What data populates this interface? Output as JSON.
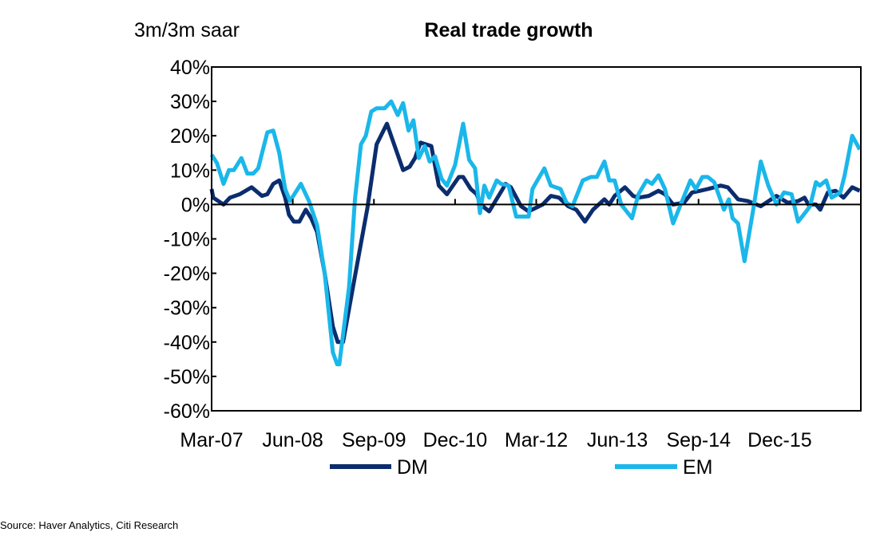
{
  "chart_data": {
    "type": "line",
    "title": "Real trade growth",
    "ylabel": "3m/3m saar",
    "xlabel": "",
    "x_unit": "months since Mar-07",
    "xlim": [
      0,
      120
    ],
    "ylim": [
      -60,
      40
    ],
    "y_ticks": [
      40,
      30,
      20,
      10,
      0,
      -10,
      -20,
      -30,
      -40,
      -50,
      -60
    ],
    "y_tick_labels": [
      "40%",
      "30%",
      "20%",
      "10%",
      "0%",
      "-10%",
      "-20%",
      "-30%",
      "-40%",
      "-50%",
      "-60%"
    ],
    "x_ticks": [
      0,
      15,
      30,
      45,
      60,
      75,
      90,
      105
    ],
    "x_tick_labels": [
      "Mar-07",
      "Jun-08",
      "Sep-09",
      "Dec-10",
      "Mar-12",
      "Jun-13",
      "Sep-14",
      "Dec-15"
    ],
    "grid": false,
    "legend_position": "bottom",
    "series": [
      {
        "name": "DM",
        "color": "#0b2d6e",
        "points": [
          [
            0,
            4.5
          ],
          [
            0.3,
            2
          ],
          [
            2.2,
            0
          ],
          [
            3.4,
            2
          ],
          [
            5.2,
            3
          ],
          [
            7.4,
            5
          ],
          [
            9.3,
            2.5
          ],
          [
            10.3,
            3
          ],
          [
            11.4,
            6
          ],
          [
            12.5,
            7
          ],
          [
            13.6,
            2
          ],
          [
            14.3,
            -3
          ],
          [
            15.2,
            -5
          ],
          [
            16.2,
            -5
          ],
          [
            17.4,
            -1.5
          ],
          [
            18.4,
            -4
          ],
          [
            19.5,
            -8
          ],
          [
            20.9,
            -20
          ],
          [
            22.4,
            -35.5
          ],
          [
            23.3,
            -40
          ],
          [
            24.3,
            -40
          ],
          [
            26.3,
            -22.5
          ],
          [
            28.8,
            -1
          ],
          [
            30.5,
            17.5
          ],
          [
            32.4,
            23.5
          ],
          [
            35.4,
            10
          ],
          [
            36.6,
            11
          ],
          [
            37.6,
            13.5
          ],
          [
            38.6,
            18
          ],
          [
            40.6,
            17
          ],
          [
            42,
            5.5
          ],
          [
            43.5,
            3
          ],
          [
            45.7,
            8
          ],
          [
            46.5,
            8
          ],
          [
            47.9,
            4.5
          ],
          [
            49,
            3
          ],
          [
            49.7,
            0
          ],
          [
            51.3,
            -2
          ],
          [
            53.8,
            4.5
          ],
          [
            54.3,
            6
          ],
          [
            55.3,
            5
          ],
          [
            57.2,
            -0.5
          ],
          [
            58.6,
            -2
          ],
          [
            61.2,
            0
          ],
          [
            62.7,
            2.5
          ],
          [
            64.2,
            2
          ],
          [
            65.9,
            -0.5
          ],
          [
            67.4,
            -1.5
          ],
          [
            69,
            -5
          ],
          [
            70.5,
            -1.5
          ],
          [
            72.6,
            1.5
          ],
          [
            73.5,
            0
          ],
          [
            74.5,
            2.5
          ],
          [
            76.4,
            5
          ],
          [
            77.9,
            2.5
          ],
          [
            78.9,
            2
          ],
          [
            80.8,
            2.5
          ],
          [
            82.6,
            4
          ],
          [
            83.8,
            3
          ],
          [
            85.3,
            0
          ],
          [
            87.3,
            0.5
          ],
          [
            88.8,
            3.5
          ],
          [
            90.3,
            4
          ],
          [
            91.7,
            4.5
          ],
          [
            94.1,
            5.5
          ],
          [
            95.4,
            5
          ],
          [
            97.3,
            1.5
          ],
          [
            99.1,
            1
          ],
          [
            101.5,
            -0.5
          ],
          [
            104.4,
            2.5
          ],
          [
            106.5,
            0.5
          ],
          [
            108.4,
            1
          ],
          [
            109.6,
            2
          ],
          [
            110.3,
            0
          ],
          [
            111.7,
            0
          ],
          [
            112.5,
            -1.5
          ],
          [
            113.9,
            3.5
          ],
          [
            115.3,
            4
          ],
          [
            116.8,
            2
          ],
          [
            118.4,
            5
          ],
          [
            119.8,
            4
          ]
        ]
      },
      {
        "name": "EM",
        "color": "#1ab7ea",
        "points": [
          [
            0,
            14.5
          ],
          [
            1,
            12
          ],
          [
            2.2,
            6
          ],
          [
            3.2,
            10
          ],
          [
            4.1,
            10
          ],
          [
            5.5,
            13.5
          ],
          [
            6.6,
            9
          ],
          [
            7.7,
            9
          ],
          [
            8.6,
            10.5
          ],
          [
            10.3,
            21
          ],
          [
            11.4,
            21.5
          ],
          [
            12.5,
            15
          ],
          [
            13.6,
            4.5
          ],
          [
            14.5,
            1
          ],
          [
            16.5,
            6
          ],
          [
            18,
            1
          ],
          [
            19.5,
            -6
          ],
          [
            20.9,
            -20
          ],
          [
            22.4,
            -43
          ],
          [
            23.2,
            -46.5
          ],
          [
            23.6,
            -46.5
          ],
          [
            25.4,
            -24
          ],
          [
            26.5,
            1.5
          ],
          [
            27.6,
            17.5
          ],
          [
            28.5,
            20
          ],
          [
            29.5,
            27
          ],
          [
            30.5,
            28
          ],
          [
            32,
            28
          ],
          [
            33.2,
            30
          ],
          [
            34.4,
            26
          ],
          [
            35.4,
            29.5
          ],
          [
            36.4,
            21.5
          ],
          [
            37.3,
            24.5
          ],
          [
            38.3,
            13.5
          ],
          [
            39.4,
            17
          ],
          [
            40.3,
            12.5
          ],
          [
            41.3,
            14
          ],
          [
            42.5,
            7.5
          ],
          [
            43.5,
            5.5
          ],
          [
            45,
            11.5
          ],
          [
            46.5,
            23.5
          ],
          [
            47.6,
            13
          ],
          [
            48.7,
            10.5
          ],
          [
            49.6,
            -2.5
          ],
          [
            50.4,
            5.5
          ],
          [
            51.3,
            2
          ],
          [
            52.7,
            7
          ],
          [
            53.5,
            6
          ],
          [
            54.9,
            5.5
          ],
          [
            56.3,
            -3.5
          ],
          [
            58.6,
            -3.5
          ],
          [
            59.3,
            4.5
          ],
          [
            60.2,
            7
          ],
          [
            61.5,
            10.5
          ],
          [
            62.7,
            5.5
          ],
          [
            64.5,
            4.5
          ],
          [
            65.6,
            0.5
          ],
          [
            66.7,
            -0.5
          ],
          [
            68.6,
            7
          ],
          [
            70.1,
            8
          ],
          [
            71.2,
            8
          ],
          [
            72.6,
            12.5
          ],
          [
            73.5,
            7
          ],
          [
            74.5,
            7
          ],
          [
            75.7,
            0
          ],
          [
            77.7,
            -4
          ],
          [
            78.9,
            3
          ],
          [
            80.4,
            7
          ],
          [
            81.4,
            6
          ],
          [
            82.6,
            8.5
          ],
          [
            83.8,
            4.5
          ],
          [
            85.3,
            -5.5
          ],
          [
            86.7,
            0
          ],
          [
            88.5,
            7
          ],
          [
            89.5,
            4.5
          ],
          [
            90.7,
            8
          ],
          [
            91.7,
            8
          ],
          [
            92.9,
            6.5
          ],
          [
            94.7,
            -1.5
          ],
          [
            95.6,
            1.5
          ],
          [
            96.3,
            -4
          ],
          [
            97.3,
            -5.5
          ],
          [
            98.5,
            -16.5
          ],
          [
            100,
            -2.5
          ],
          [
            101.5,
            12.5
          ],
          [
            102.9,
            5.5
          ],
          [
            104.4,
            0
          ],
          [
            105.8,
            3.5
          ],
          [
            107.2,
            3
          ],
          [
            108.4,
            -5
          ],
          [
            109.9,
            -2
          ],
          [
            110.6,
            -0.5
          ],
          [
            111.7,
            6.5
          ],
          [
            112.4,
            5.5
          ],
          [
            113.6,
            7
          ],
          [
            114.6,
            2
          ],
          [
            116.2,
            3.5
          ],
          [
            117,
            8.5
          ],
          [
            118.4,
            20
          ],
          [
            119.8,
            16
          ]
        ]
      }
    ]
  },
  "source": "Source: Haver Analytics, Citi Research"
}
